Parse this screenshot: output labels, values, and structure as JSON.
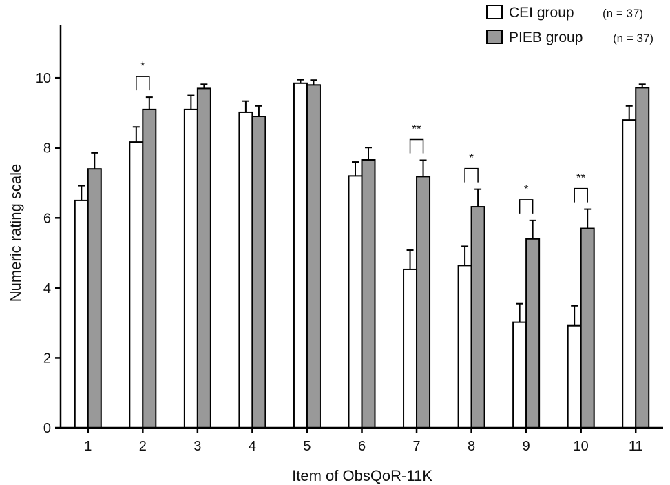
{
  "chart_data": {
    "type": "bar",
    "xlabel": "Item of ObsQoR-11K",
    "ylabel": "Numeric rating scale",
    "ylim": [
      0,
      11.5
    ],
    "yticks": [
      0,
      2,
      4,
      6,
      8,
      10
    ],
    "categories": [
      "1",
      "2",
      "3",
      "4",
      "5",
      "6",
      "7",
      "8",
      "9",
      "10",
      "11"
    ],
    "series": [
      {
        "name": "CEI group",
        "n_label": "(n = 37)",
        "color": "#ffffff",
        "values": [
          6.5,
          8.17,
          9.1,
          9.02,
          9.85,
          7.2,
          4.53,
          4.64,
          3.02,
          2.92,
          8.8
        ],
        "errors": [
          0.42,
          0.43,
          0.4,
          0.32,
          0.1,
          0.4,
          0.55,
          0.55,
          0.53,
          0.57,
          0.4
        ]
      },
      {
        "name": "PIEB group",
        "n_label": "(n = 37)",
        "color": "#999999",
        "values": [
          7.4,
          9.1,
          9.7,
          8.9,
          9.8,
          7.66,
          7.18,
          6.32,
          5.4,
          5.7,
          9.72
        ],
        "errors": [
          0.46,
          0.35,
          0.12,
          0.3,
          0.14,
          0.35,
          0.47,
          0.5,
          0.53,
          0.55,
          0.1
        ]
      }
    ],
    "significance": [
      {
        "category": "2",
        "label": "*"
      },
      {
        "category": "7",
        "label": "**"
      },
      {
        "category": "8",
        "label": "*"
      },
      {
        "category": "9",
        "label": "*"
      },
      {
        "category": "10",
        "label": "**"
      }
    ],
    "legend_position": "top-right",
    "grid": false
  }
}
